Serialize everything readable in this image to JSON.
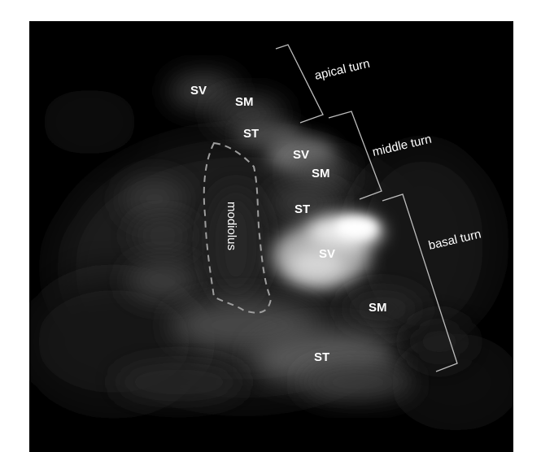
{
  "figure": {
    "region_labels": [
      "SV",
      "SM",
      "ST",
      "SV",
      "SM",
      "ST",
      "SV",
      "SM",
      "ST"
    ],
    "structure_label": "modiolus",
    "turn_labels": {
      "apical": "apical turn",
      "middle": "middle turn",
      "basal": "basal turn"
    },
    "colors": {
      "background": "#000000",
      "frame": "#ffffff",
      "bracket": "#bdbdbd",
      "dashed_outline": "#9e9e9e",
      "text": "#ffffff"
    }
  }
}
